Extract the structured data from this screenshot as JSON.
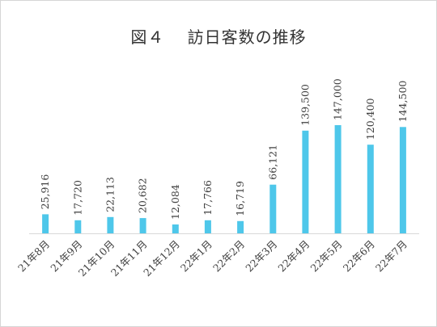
{
  "chart_data": {
    "type": "bar",
    "title": "図４　 訪日客数の推移",
    "categories": [
      "21年8月",
      "21年9月",
      "21年10月",
      "21年11月",
      "21年12月",
      "22年1月",
      "22年2月",
      "22年3月",
      "22年4月",
      "22年5月",
      "22年6月",
      "22年7月"
    ],
    "values": [
      25916,
      17720,
      22113,
      20682,
      12084,
      17766,
      16719,
      66121,
      139500,
      147000,
      120400,
      144500
    ],
    "data_labels": [
      "25,916",
      "17,720",
      "22,113",
      "20,682",
      "12,084",
      "17,766",
      "16,719",
      "66,121",
      "139,500",
      "147,000",
      "120,400",
      "144,500"
    ],
    "bar_color": "#4ec7ea",
    "axis_color": "#d9d9d9",
    "ylim": [
      0,
      147000
    ],
    "grid": false,
    "legend": "none"
  }
}
